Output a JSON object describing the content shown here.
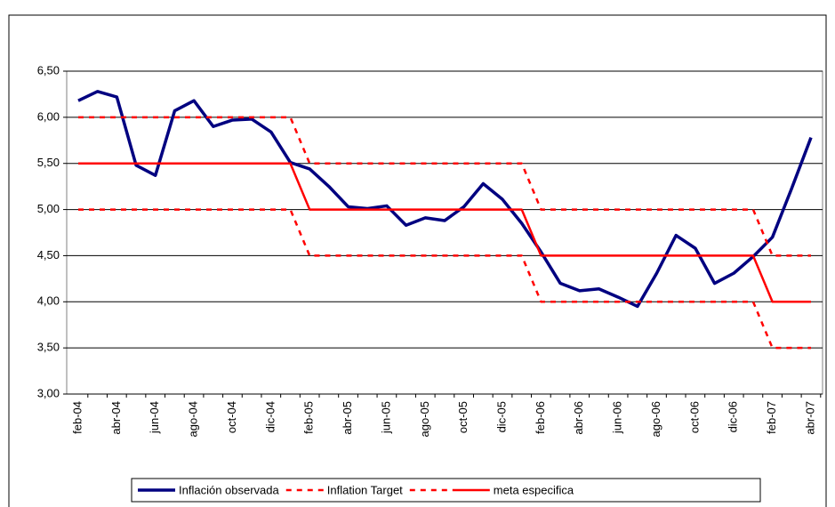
{
  "chart_data": {
    "type": "line",
    "categories": [
      "feb-04",
      null,
      "abr-04",
      null,
      "jun-04",
      null,
      "ago-04",
      null,
      "oct-04",
      null,
      "dic-04",
      null,
      "feb-05",
      null,
      "abr-05",
      null,
      "jun-05",
      null,
      "ago-05",
      null,
      "oct-05",
      null,
      "dic-05",
      null,
      "feb-06",
      null,
      "abr-06",
      null,
      "jun-06",
      null,
      "ago-06",
      null,
      "oct-06",
      null,
      "dic-06",
      null,
      "feb-07",
      null,
      "abr-07"
    ],
    "series": [
      {
        "name": "Inflación observada",
        "color": "#000080",
        "style": "solid",
        "width": 3.5,
        "values": [
          6.18,
          6.28,
          6.22,
          5.48,
          5.37,
          6.07,
          6.18,
          5.9,
          5.97,
          5.98,
          5.84,
          5.51,
          5.44,
          5.25,
          5.03,
          5.01,
          5.04,
          4.83,
          4.91,
          4.88,
          5.03,
          5.28,
          5.11,
          4.85,
          4.54,
          4.2,
          4.12,
          4.14,
          4.05,
          3.95,
          4.31,
          4.72,
          4.58,
          4.2,
          4.31,
          4.49,
          4.7,
          5.23,
          5.78
        ]
      },
      {
        "name": "Inflation Target",
        "color": "#ff0000",
        "style": "dashed",
        "width": 2.5,
        "values": [
          6,
          6,
          6,
          6,
          6,
          6,
          6,
          6,
          6,
          6,
          6,
          6,
          5.5,
          5.5,
          5.5,
          5.5,
          5.5,
          5.5,
          5.5,
          5.5,
          5.5,
          5.5,
          5.5,
          5.5,
          5,
          5,
          5,
          5,
          5,
          5,
          5,
          5,
          5,
          5,
          5,
          5,
          4.5,
          4.5,
          4.5
        ]
      },
      {
        "color": "#ff0000",
        "style": "dashed",
        "width": 2.5,
        "values": [
          5,
          5,
          5,
          5,
          5,
          5,
          5,
          5,
          5,
          5,
          5,
          5,
          4.5,
          4.5,
          4.5,
          4.5,
          4.5,
          4.5,
          4.5,
          4.5,
          4.5,
          4.5,
          4.5,
          4.5,
          4,
          4,
          4,
          4,
          4,
          4,
          4,
          4,
          4,
          4,
          4,
          4,
          3.5,
          3.5,
          3.5
        ]
      },
      {
        "name": "meta especifica",
        "color": "#ff0000",
        "style": "solid",
        "width": 2.5,
        "values": [
          5.5,
          5.5,
          5.5,
          5.5,
          5.5,
          5.5,
          5.5,
          5.5,
          5.5,
          5.5,
          5.5,
          5.5,
          5,
          5,
          5,
          5,
          5,
          5,
          5,
          5,
          5,
          5,
          5,
          5,
          4.5,
          4.5,
          4.5,
          4.5,
          4.5,
          4.5,
          4.5,
          4.5,
          4.5,
          4.5,
          4.5,
          4.5,
          4,
          4,
          4
        ]
      }
    ],
    "ylim": [
      3,
      6.5
    ],
    "yticks": [
      {
        "value": 3,
        "label": "3,00"
      },
      {
        "value": 3.5,
        "label": "3,50"
      },
      {
        "value": 4,
        "label": "4,00"
      },
      {
        "value": 4.5,
        "label": "4,50"
      },
      {
        "value": 5,
        "label": "5,00"
      },
      {
        "value": 5.5,
        "label": "5,50"
      },
      {
        "value": 6,
        "label": "6,00"
      },
      {
        "value": 6.5,
        "label": "6,50"
      }
    ],
    "grid": true
  }
}
